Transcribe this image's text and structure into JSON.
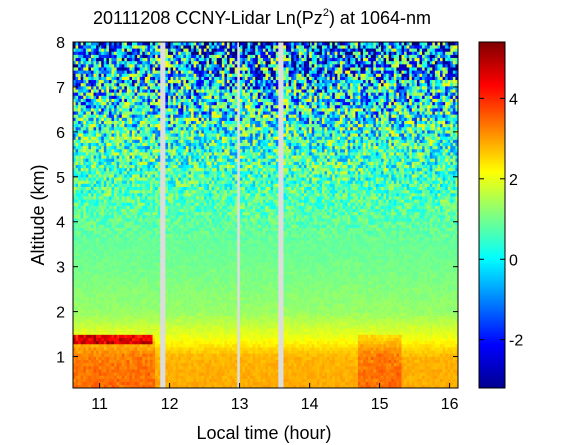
{
  "chart_data": {
    "type": "heatmap",
    "title_main": "20111208 CCNY-Lidar Ln(Pz",
    "title_sup": "2",
    "title_tail": ") at 1064-nm",
    "xlabel": "Local time (hour)",
    "ylabel": "Altitude (km)",
    "xlim": [
      10.62,
      16.12
    ],
    "ylim": [
      0.3,
      8
    ],
    "x_ticks": [
      "11",
      "12",
      "13",
      "14",
      "15",
      "16"
    ],
    "y_ticks": [
      "1",
      "2",
      "3",
      "4",
      "5",
      "6",
      "7",
      "8"
    ],
    "colorbar": {
      "range": [
        -3.2,
        5.4
      ],
      "ticks": [
        "-2",
        "0",
        "2",
        "4"
      ],
      "colormap": "jet"
    },
    "data_gaps_hours": [
      [
        11.88,
        11.95
      ],
      [
        12.97,
        13.02
      ],
      [
        13.54,
        13.64
      ]
    ],
    "boundary_layer_top_km": 1.45,
    "profile_summary": {
      "altitudes_km": [
        0.3,
        1.0,
        1.45,
        2.0,
        3.0,
        4.0,
        5.0,
        6.0,
        7.0,
        8.0
      ],
      "ln_pz2_values": [
        2.9,
        2.8,
        2.0,
        1.3,
        1.0,
        0.8,
        0.6,
        0.4,
        -0.3,
        -1.0
      ]
    }
  }
}
